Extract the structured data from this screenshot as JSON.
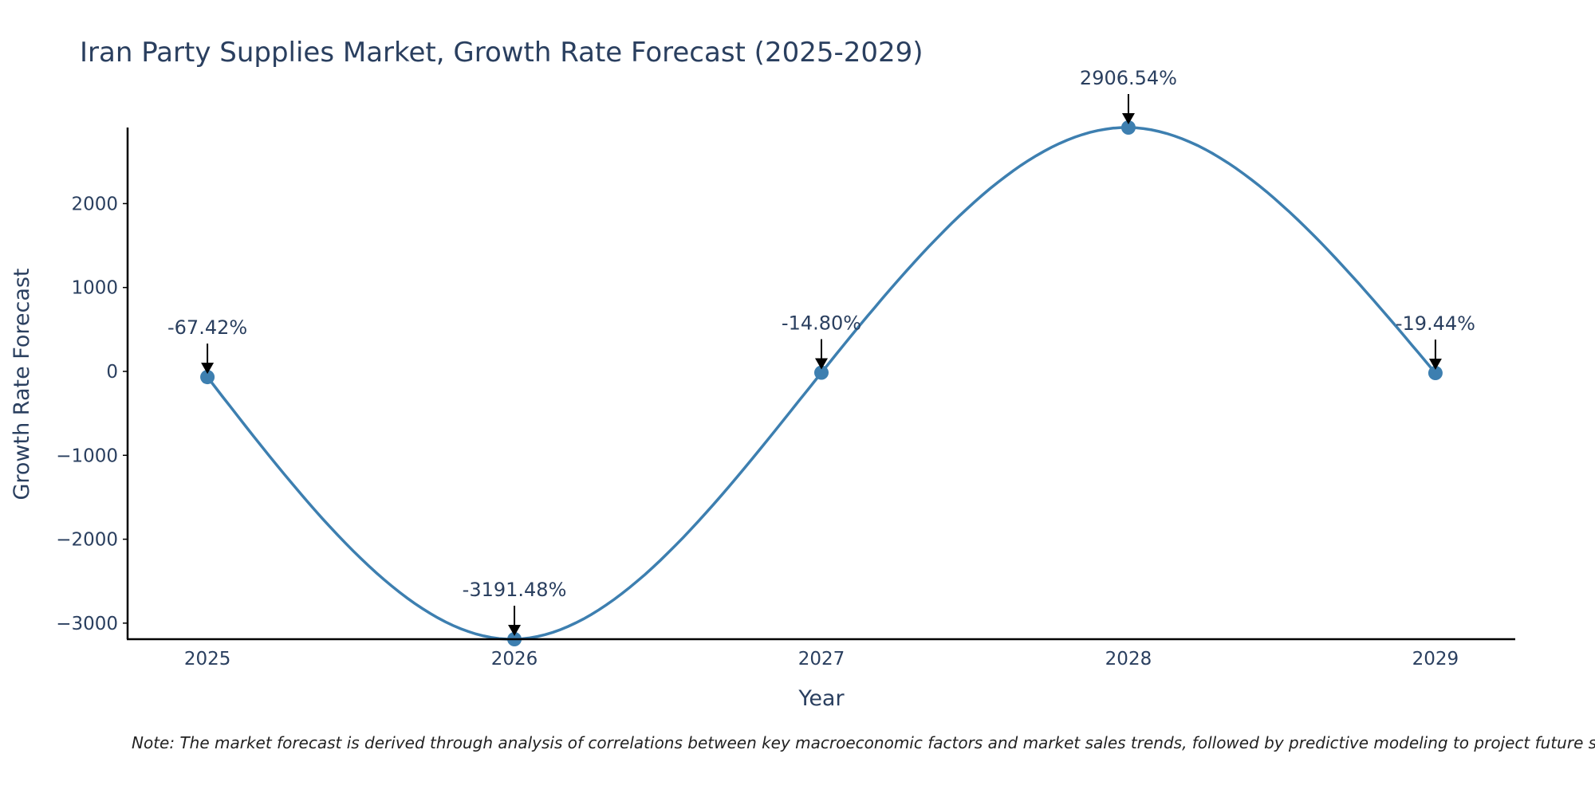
{
  "chart_data": {
    "type": "line",
    "title": "Iran Party Supplies Market, Growth Rate Forecast (2025-2029)",
    "xlabel": "Year",
    "ylabel": "Growth Rate Forecast",
    "categories": [
      "2025",
      "2026",
      "2027",
      "2028",
      "2029"
    ],
    "x": [
      2025,
      2026,
      2027,
      2028,
      2029
    ],
    "values": [
      -67.42,
      -3191.48,
      -14.8,
      2906.54,
      -19.44
    ],
    "data_labels": [
      "-67.42%",
      "-3191.48%",
      "-14.80%",
      "2906.54%",
      "-19.44%"
    ],
    "yticks": [
      -3000,
      -2000,
      -1000,
      0,
      1000,
      2000
    ],
    "ytick_labels": [
      "−3000",
      "−2000",
      "−1000",
      "0",
      "1000",
      "2000"
    ],
    "ylim": [
      -3191.48,
      2906.54
    ],
    "xlim": [
      2024.74,
      2029.26
    ],
    "line_color": "#3d7fb0",
    "marker_color": "#3d7fb0",
    "grid": false,
    "legend": "none",
    "note": "Note: The market forecast is derived through analysis of correlations between key macroeconomic factors and market sales trends, followed by predictive modeling to project future sales."
  }
}
